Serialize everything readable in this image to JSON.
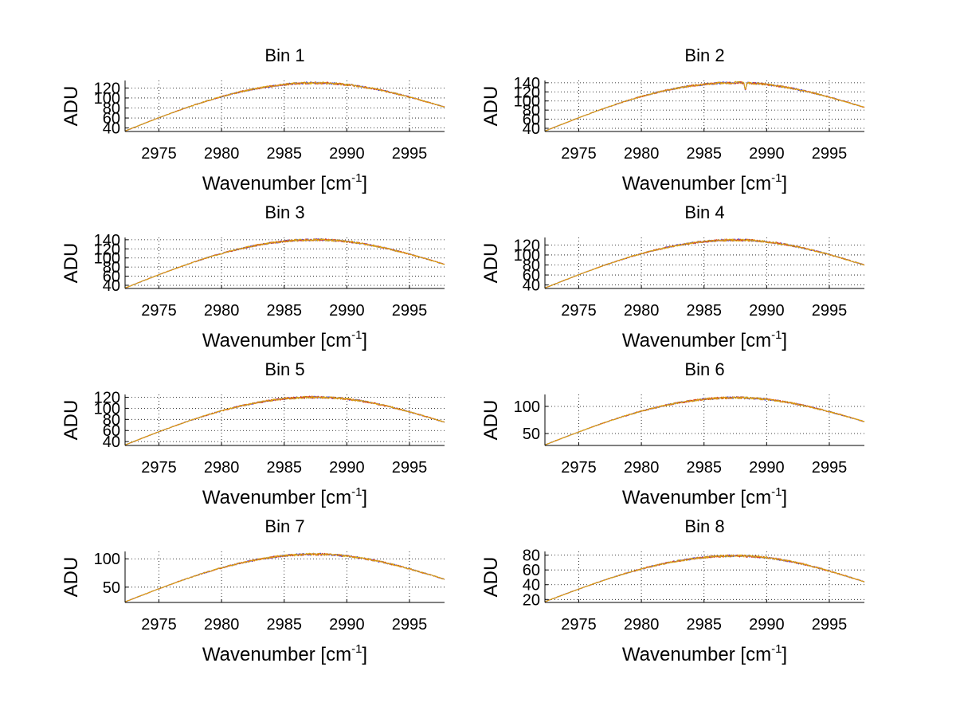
{
  "chart_data": [
    {
      "type": "line",
      "title": "Bin 1",
      "xlabel": "Wavenumber [cm",
      "xlabel_sup": "-1",
      "xlabel_suffix": "]",
      "ylabel": "ADU",
      "xlim": [
        2972.3,
        2997.8
      ],
      "ylim": [
        33,
        135
      ],
      "grid": true,
      "xticks": [
        2975,
        2980,
        2985,
        2990,
        2995
      ],
      "yticks": [
        40,
        60,
        80,
        100,
        120
      ],
      "peak": {
        "x": 2987.5,
        "y": 130
      },
      "start": {
        "x": 2972.3,
        "y": 34
      },
      "end": {
        "x": 2997.8,
        "y": 82
      },
      "series": [
        {
          "color": "#3b3bd9"
        },
        {
          "color": "#e0401c"
        },
        {
          "color": "#d8a810"
        }
      ]
    },
    {
      "type": "line",
      "title": "Bin 2",
      "xlabel": "Wavenumber [cm",
      "xlabel_sup": "-1",
      "xlabel_suffix": "]",
      "ylabel": "ADU",
      "xlim": [
        2972.3,
        2997.8
      ],
      "ylim": [
        33,
        145
      ],
      "grid": true,
      "xticks": [
        2975,
        2980,
        2985,
        2990,
        2995
      ],
      "yticks": [
        40,
        60,
        80,
        100,
        120,
        140
      ],
      "peak": {
        "x": 2987.5,
        "y": 140
      },
      "start": {
        "x": 2972.3,
        "y": 34
      },
      "end": {
        "x": 2997.8,
        "y": 86
      },
      "dip": {
        "x": 2988.3,
        "depth": 18
      },
      "series": [
        {
          "color": "#3b3bd9"
        },
        {
          "color": "#e0401c"
        },
        {
          "color": "#d8a810"
        }
      ]
    },
    {
      "type": "line",
      "title": "Bin 3",
      "xlabel": "Wavenumber [cm",
      "xlabel_sup": "-1",
      "xlabel_suffix": "]",
      "ylabel": "ADU",
      "xlim": [
        2972.3,
        2997.8
      ],
      "ylim": [
        33,
        145
      ],
      "grid": true,
      "xticks": [
        2975,
        2980,
        2985,
        2990,
        2995
      ],
      "yticks": [
        40,
        60,
        80,
        100,
        120,
        140
      ],
      "peak": {
        "x": 2987.5,
        "y": 140
      },
      "start": {
        "x": 2972.3,
        "y": 34
      },
      "end": {
        "x": 2997.8,
        "y": 86
      },
      "series": [
        {
          "color": "#3b3bd9"
        },
        {
          "color": "#e0401c"
        },
        {
          "color": "#d8a810"
        }
      ]
    },
    {
      "type": "line",
      "title": "Bin 4",
      "xlabel": "Wavenumber [cm",
      "xlabel_sup": "-1",
      "xlabel_suffix": "]",
      "ylabel": "ADU",
      "xlim": [
        2972.3,
        2997.8
      ],
      "ylim": [
        33,
        135
      ],
      "grid": true,
      "xticks": [
        2975,
        2980,
        2985,
        2990,
        2995
      ],
      "yticks": [
        40,
        60,
        80,
        100,
        120
      ],
      "peak": {
        "x": 2987.5,
        "y": 130
      },
      "start": {
        "x": 2972.3,
        "y": 34
      },
      "end": {
        "x": 2997.8,
        "y": 80
      },
      "series": [
        {
          "color": "#3b3bd9"
        },
        {
          "color": "#e0401c"
        },
        {
          "color": "#d8a810"
        }
      ]
    },
    {
      "type": "line",
      "title": "Bin 5",
      "xlabel": "Wavenumber [cm",
      "xlabel_sup": "-1",
      "xlabel_suffix": "]",
      "ylabel": "ADU",
      "xlim": [
        2972.3,
        2997.8
      ],
      "ylim": [
        33,
        125
      ],
      "grid": true,
      "xticks": [
        2975,
        2980,
        2985,
        2990,
        2995
      ],
      "yticks": [
        40,
        60,
        80,
        100,
        120
      ],
      "peak": {
        "x": 2987.5,
        "y": 120
      },
      "start": {
        "x": 2972.3,
        "y": 34
      },
      "end": {
        "x": 2997.8,
        "y": 75
      },
      "series": [
        {
          "color": "#3b3bd9"
        },
        {
          "color": "#e0401c"
        },
        {
          "color": "#d8a810"
        }
      ]
    },
    {
      "type": "line",
      "title": "Bin 6",
      "xlabel": "Wavenumber [cm",
      "xlabel_sup": "-1",
      "xlabel_suffix": "]",
      "ylabel": "ADU",
      "xlim": [
        2972.3,
        2997.8
      ],
      "ylim": [
        28,
        122
      ],
      "grid": true,
      "xticks": [
        2975,
        2980,
        2985,
        2990,
        2995
      ],
      "yticks": [
        50,
        100
      ],
      "peak": {
        "x": 2987.5,
        "y": 116
      },
      "start": {
        "x": 2972.3,
        "y": 29
      },
      "end": {
        "x": 2997.8,
        "y": 72
      },
      "series": [
        {
          "color": "#3b3bd9"
        },
        {
          "color": "#e0401c"
        },
        {
          "color": "#d8a810"
        }
      ]
    },
    {
      "type": "line",
      "title": "Bin 7",
      "xlabel": "Wavenumber [cm",
      "xlabel_sup": "-1",
      "xlabel_suffix": "]",
      "ylabel": "ADU",
      "xlim": [
        2972.3,
        2997.8
      ],
      "ylim": [
        23,
        113
      ],
      "grid": true,
      "xticks": [
        2975,
        2980,
        2985,
        2990,
        2995
      ],
      "yticks": [
        50,
        100
      ],
      "peak": {
        "x": 2987.5,
        "y": 108
      },
      "start": {
        "x": 2972.3,
        "y": 24
      },
      "end": {
        "x": 2997.8,
        "y": 64
      },
      "series": [
        {
          "color": "#3b3bd9"
        },
        {
          "color": "#e0401c"
        },
        {
          "color": "#d8a810"
        }
      ]
    },
    {
      "type": "line",
      "title": "Bin 8",
      "xlabel": "Wavenumber [cm",
      "xlabel_sup": "-1",
      "xlabel_suffix": "]",
      "ylabel": "ADU",
      "xlim": [
        2972.3,
        2997.8
      ],
      "ylim": [
        16,
        85
      ],
      "grid": true,
      "xticks": [
        2975,
        2980,
        2985,
        2990,
        2995
      ],
      "yticks": [
        20,
        40,
        60,
        80
      ],
      "peak": {
        "x": 2987.5,
        "y": 79
      },
      "start": {
        "x": 2972.3,
        "y": 17
      },
      "end": {
        "x": 2997.8,
        "y": 44
      },
      "series": [
        {
          "color": "#3b3bd9"
        },
        {
          "color": "#e0401c"
        },
        {
          "color": "#d8a810"
        }
      ]
    }
  ]
}
